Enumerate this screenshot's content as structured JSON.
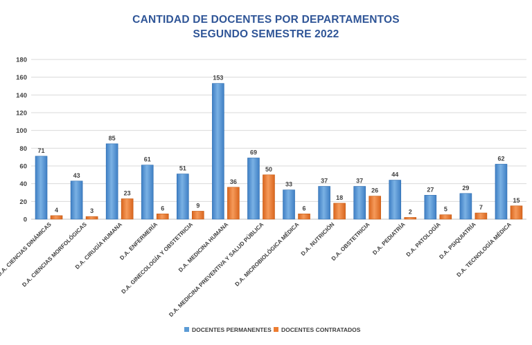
{
  "chart_data": {
    "type": "bar",
    "title": "CANTIDAD DE DOCENTES POR DEPARTAMENTOS",
    "subtitle": "SEGUNDO SEMESTRE 2022",
    "categories": [
      "D.A. CIENCIAS DINÁMICAS",
      "D.A. CIENCIAS MORFOLÓGICAS",
      "D.A. CIRUGÍA HUMANA",
      "D.A. ENFERMERÍA",
      "D.A. GINECOLOGÍA Y OBSTETRICIA",
      "D.A. MEDICINA HUMANA",
      "D.A. MEDICINA PREVENTIVA Y SALUD PÚBLICA",
      "D.A. MICROBIOLÓGICA MÉDICA",
      "D.A. NUTRICIÓN",
      "D.A. OBSTETRICIA",
      "D.A. PEDIATRÍA",
      "D.A. PATOLOGÍA",
      "D.A. PSIQUIATRÍA",
      "D.A. TECNOLOGÍA MÉDICA"
    ],
    "series": [
      {
        "name": "DOCENTES PERMANENTES",
        "color": "#5B9BD5",
        "values": [
          71,
          43,
          85,
          61,
          51,
          153,
          69,
          33,
          37,
          37,
          44,
          27,
          29,
          62
        ]
      },
      {
        "name": "DOCENTES CONTRATADOS",
        "color": "#ED7D31",
        "values": [
          4,
          3,
          23,
          6,
          9,
          36,
          50,
          6,
          18,
          26,
          2,
          5,
          7,
          15
        ]
      }
    ],
    "ylim": [
      0,
      180
    ],
    "yticks": [
      0,
      20,
      40,
      60,
      80,
      100,
      120,
      140,
      160,
      180
    ],
    "grid": true,
    "legend": "bottom"
  }
}
